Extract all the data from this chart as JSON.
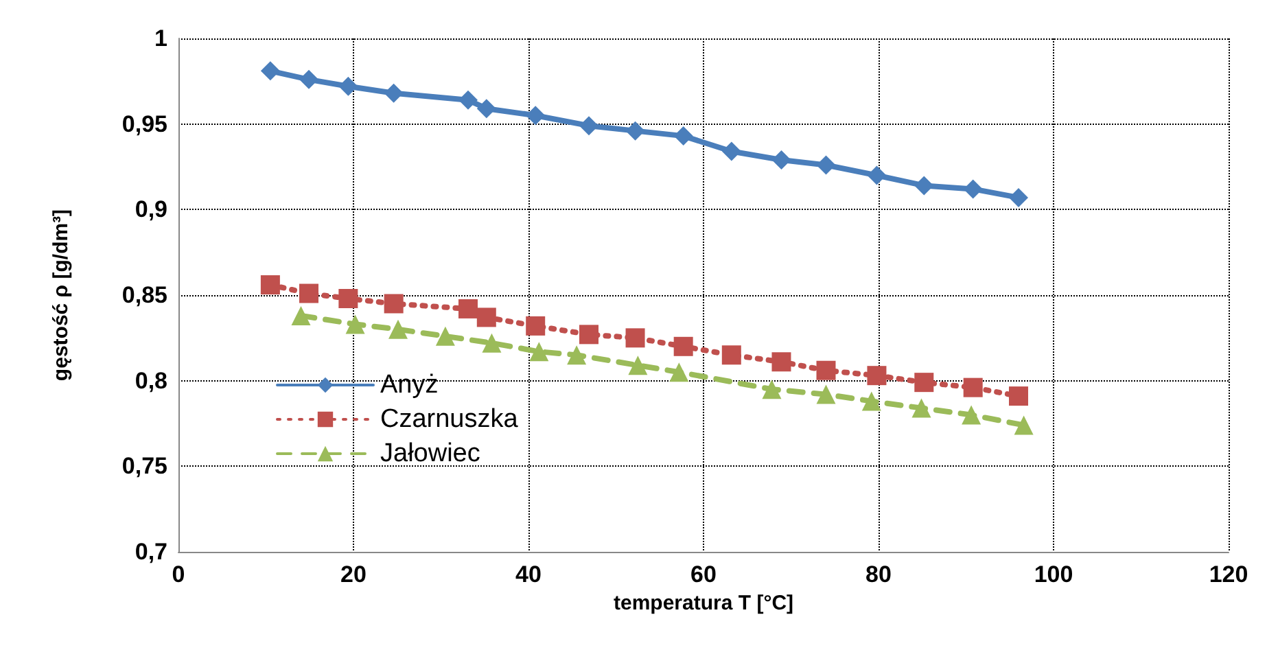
{
  "chart_data": {
    "type": "line",
    "xlabel": "temperatura T [°C]",
    "ylabel": "gęstość ρ [g/dm³]",
    "xlim": [
      0,
      120
    ],
    "xticks": [
      0,
      20,
      40,
      60,
      80,
      100,
      120
    ],
    "ylim": [
      0.7,
      1
    ],
    "yticks": [
      {
        "value": 0.7,
        "label": "0,7"
      },
      {
        "value": 0.75,
        "label": "0,75"
      },
      {
        "value": 0.8,
        "label": "0,8"
      },
      {
        "value": 0.85,
        "label": "0,85"
      },
      {
        "value": 0.9,
        "label": "0,9"
      },
      {
        "value": 0.95,
        "label": "0,95"
      },
      {
        "value": 1,
        "label": "1"
      }
    ],
    "grid": true,
    "legend": "bottom left",
    "series": [
      {
        "name": "Anyż",
        "color": "#4a7ebb",
        "marker": "diamond",
        "line_style": "solid",
        "x": [
          10.5,
          14.9,
          19.4,
          24.6,
          33.1,
          35.2,
          40.8,
          46.9,
          52.2,
          57.7,
          63.2,
          68.9,
          74.0,
          79.8,
          85.2,
          90.8,
          96.0
        ],
        "values": [
          0.981,
          0.976,
          0.972,
          0.968,
          0.964,
          0.959,
          0.955,
          0.949,
          0.946,
          0.943,
          0.934,
          0.929,
          0.926,
          0.92,
          0.914,
          0.912,
          0.907
        ]
      },
      {
        "name": "Czarnuszka",
        "color": "#c0504d",
        "marker": "square",
        "line_style": "dotted",
        "x": [
          10.5,
          14.9,
          19.4,
          24.6,
          33.1,
          35.2,
          40.8,
          46.9,
          52.2,
          57.7,
          63.2,
          68.9,
          74.0,
          79.8,
          85.2,
          90.8,
          96.0
        ],
        "values": [
          0.856,
          0.851,
          0.848,
          0.845,
          0.842,
          0.837,
          0.832,
          0.827,
          0.825,
          0.82,
          0.815,
          0.811,
          0.806,
          0.803,
          0.799,
          0.796,
          0.791
        ]
      },
      {
        "name": "Jałowiec",
        "color": "#9bbb59",
        "marker": "triangle",
        "line_style": "dashed",
        "x": [
          14.0,
          20.2,
          25.1,
          30.5,
          35.8,
          41.2,
          45.5,
          52.5,
          57.2,
          67.8,
          74.0,
          79.2,
          84.9,
          90.6,
          96.6
        ],
        "values": [
          0.838,
          0.833,
          0.83,
          0.826,
          0.822,
          0.817,
          0.815,
          0.809,
          0.805,
          0.795,
          0.792,
          0.788,
          0.784,
          0.78,
          0.774
        ]
      }
    ]
  }
}
